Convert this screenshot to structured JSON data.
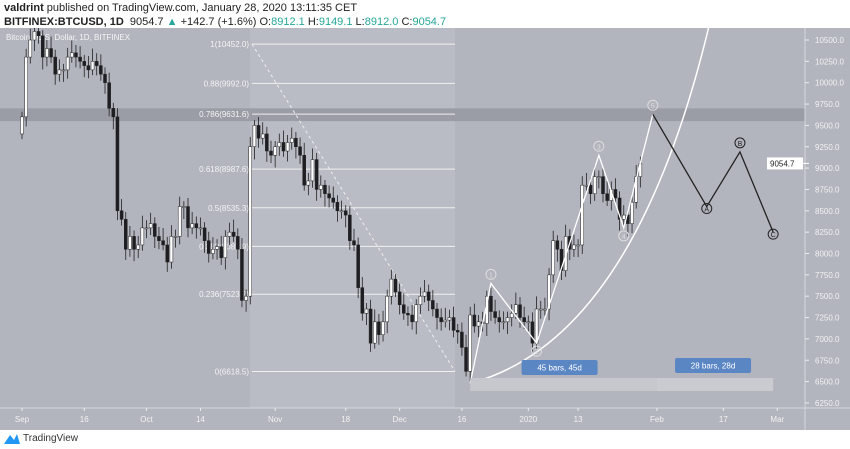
{
  "header": {
    "author": "valdrint",
    "published": "published on TradingView.com, January 28, 2020 13:11:35 CET",
    "symbol": "BITFINEX:BTCUSD, 1D",
    "last": "9054.7",
    "change": "+142.7 (+1.6%)",
    "o_label": "O:",
    "o": "8912.1",
    "h_label": "H:",
    "h": "9149.1",
    "l_label": "L:",
    "l": "8912.0",
    "c_label": "C:",
    "c": "9054.7"
  },
  "footer": {
    "brand": "TradingView"
  },
  "colors": {
    "background": "#b2b5be",
    "up": "#ffffff",
    "down": "#1e1e22",
    "accent": "#26a69a",
    "label_blue": "#5a86c4"
  },
  "chart_data": {
    "type": "candlestick",
    "title": "Bitcoin / U.S. Dollar, 1D, BITFINEX",
    "start_date": "2019-09-01",
    "closes": [
      9600,
      10300,
      10500,
      10600,
      10550,
      10300,
      10400,
      10300,
      10100,
      10150,
      10150,
      10300,
      10350,
      10300,
      10250,
      10200,
      10150,
      10250,
      10200,
      10100,
      10000,
      9700,
      9600,
      8500,
      8400,
      8050,
      8200,
      8050,
      8100,
      8300,
      8300,
      8350,
      8200,
      8150,
      8100,
      7900,
      8200,
      8200,
      8550,
      8550,
      8300,
      8350,
      8300,
      8300,
      8150,
      8000,
      8050,
      8080,
      7950,
      8200,
      8250,
      8200,
      8050,
      7450,
      7500,
      9250,
      9500,
      9350,
      9400,
      9200,
      9150,
      9250,
      9300,
      9200,
      9300,
      9350,
      9250,
      9150,
      8800,
      8850,
      9100,
      8750,
      8800,
      8700,
      8650,
      8600,
      8500,
      8500,
      8450,
      8150,
      8100,
      7600,
      7300,
      7350,
      6950,
      7200,
      7050,
      7200,
      7500,
      7700,
      7550,
      7400,
      7300,
      7280,
      7200,
      7400,
      7500,
      7550,
      7450,
      7350,
      7250,
      7200,
      7220,
      7250,
      7100,
      7080,
      6900,
      6620,
      7280,
      7150,
      7200,
      7180,
      7500,
      7320,
      7250,
      7200,
      7200,
      7250,
      7300,
      7400,
      7250,
      7200,
      7200,
      6950,
      7350,
      7350,
      7350,
      7750,
      8150,
      8050,
      7800,
      8200,
      8050,
      8100,
      8100,
      8800,
      8800,
      8700,
      8900,
      8900,
      8700,
      8620,
      8750,
      8650,
      8400,
      8450,
      8350,
      8600,
      8900,
      9050
    ],
    "ylim": [
      6100,
      10750
    ],
    "y_ticks": [
      "10500.0",
      "10250.0",
      "10000.0",
      "9750.0",
      "9500.0",
      "9250.0",
      "9000.0",
      "8750.0",
      "8500.0",
      "8250.0",
      "8000.0",
      "7750.0",
      "7500.0",
      "7250.0",
      "7000.0",
      "6750.0",
      "6500.0",
      "6250.0"
    ],
    "x_ticks": [
      {
        "label": "Sep",
        "date": "2019-09-01"
      },
      {
        "label": "16",
        "date": "2019-09-16"
      },
      {
        "label": "Oct",
        "date": "2019-10-01"
      },
      {
        "label": "14",
        "date": "2019-10-14"
      },
      {
        "label": "Nov",
        "date": "2019-11-01"
      },
      {
        "label": "18",
        "date": "2019-11-18"
      },
      {
        "label": "Dec",
        "date": "2019-12-01"
      },
      {
        "label": "16",
        "date": "2019-12-16"
      },
      {
        "label": "2020",
        "date": "2020-01-01"
      },
      {
        "label": "13",
        "date": "2020-01-13"
      },
      {
        "label": "Feb",
        "date": "2020-02-01"
      },
      {
        "label": "17",
        "date": "2020-02-17"
      },
      {
        "label": "Mar",
        "date": "2020-03-01"
      }
    ],
    "last_price_label": "9054.7",
    "fib_levels": [
      {
        "label": "1(10452.0)",
        "price": 10452.0
      },
      {
        "label": "0.88(9992.0)",
        "price": 9992.0
      },
      {
        "label": "0.786(9631.6)",
        "price": 9631.6
      },
      {
        "label": "0.618(8987.6)",
        "price": 8987.6
      },
      {
        "label": "0.5(8535.3)",
        "price": 8535.3
      },
      {
        "label": "0.382(8082.9)",
        "price": 8082.9
      },
      {
        "label": "0.236(7523.2)",
        "price": 7523.2
      },
      {
        "label": "0(6618.5)",
        "price": 6618.5
      }
    ],
    "resistance_zone": [
      9550,
      9700
    ],
    "waves": [
      {
        "label": "",
        "date": "2019-12-18",
        "price": 6480
      },
      {
        "label": "1",
        "date": "2019-12-23",
        "price": 7650
      },
      {
        "label": "2",
        "date": "2020-01-03",
        "price": 6950
      },
      {
        "label": "3",
        "date": "2020-01-18",
        "price": 9150
      },
      {
        "label": "4",
        "date": "2020-01-24",
        "price": 8300
      },
      {
        "label": "5",
        "date": "2020-01-31",
        "price": 9630
      },
      {
        "label": "A",
        "date": "2020-02-13",
        "price": 8550
      },
      {
        "label": "B",
        "date": "2020-02-21",
        "price": 9190
      },
      {
        "label": "C",
        "date": "2020-02-29",
        "price": 8250
      }
    ],
    "ranges": [
      {
        "label": "45 bars, 45d",
        "from": "2019-12-18",
        "to": "2020-02-01"
      },
      {
        "label": "28 bars, 28d",
        "from": "2020-02-01",
        "to": "2020-02-29"
      }
    ]
  }
}
